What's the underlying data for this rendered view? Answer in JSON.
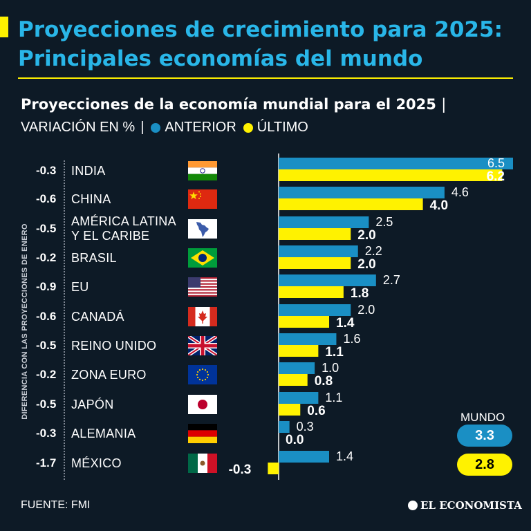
{
  "header": {
    "title": "Proyecciones de crecimiento para 2025: Principales economías del mundo",
    "subtitle": "Proyecciones de la economía mundial para el 2025",
    "subtitle_sep": "|",
    "unit_label": "VARIACIÓN EN %",
    "legend_sep": "|",
    "legend_prev": "ANTERIOR",
    "legend_last": "ÚLTIMO"
  },
  "side_label": "DIFERENCIA CON LAS PROYECCIONES DE ENERO",
  "colors": {
    "background": "#0d1a26",
    "title": "#29b6e8",
    "prev": "#1a8fc4",
    "last": "#fff200"
  },
  "rows": [
    {
      "diff": "-0.3",
      "country": "INDIA",
      "flag": "india-flag-icon"
    },
    {
      "diff": "-0.6",
      "country": "CHINA",
      "flag": "china-flag-icon"
    },
    {
      "diff": "-0.5",
      "country": "AMÉRICA LATINA Y EL CARIBE",
      "flag": "latin-america-map-icon"
    },
    {
      "diff": "-0.2",
      "country": "BRASIL",
      "flag": "brazil-flag-icon"
    },
    {
      "diff": "-0.9",
      "country": "EU",
      "flag": "usa-flag-icon"
    },
    {
      "diff": "-0.6",
      "country": "CANADÁ",
      "flag": "canada-flag-icon"
    },
    {
      "diff": "-0.5",
      "country": "REINO UNIDO",
      "flag": "uk-flag-icon"
    },
    {
      "diff": "-0.2",
      "country": "ZONA EURO",
      "flag": "eu-flag-icon"
    },
    {
      "diff": "-0.5",
      "country": "JAPÓN",
      "flag": "japan-flag-icon"
    },
    {
      "diff": "-0.3",
      "country": "ALEMANIA",
      "flag": "germany-flag-icon"
    },
    {
      "diff": "-1.7",
      "country": "MÉXICO",
      "flag": "mexico-flag-icon"
    }
  ],
  "world": {
    "label": "MUNDO",
    "prev": "3.3",
    "last": "2.8"
  },
  "footer": {
    "source": "FUENTE: FMI",
    "brand": "EL ECONOMISTA"
  },
  "chart_data": {
    "type": "bar",
    "orientation": "horizontal",
    "categories": [
      "INDIA",
      "CHINA",
      "AMÉRICA LATINA Y EL CARIBE",
      "BRASIL",
      "EU",
      "CANADÁ",
      "REINO UNIDO",
      "ZONA EURO",
      "JAPÓN",
      "ALEMANIA",
      "MÉXICO"
    ],
    "series": [
      {
        "name": "ANTERIOR",
        "values": [
          6.5,
          4.6,
          2.5,
          2.2,
          2.7,
          2.0,
          1.6,
          1.0,
          1.1,
          0.3,
          1.4
        ],
        "labels": [
          "6.5",
          "4.6",
          "2.5",
          "2.2",
          "2.7",
          "2.0",
          "1.6",
          "1.0",
          "1.1",
          "0.3",
          "1.4"
        ]
      },
      {
        "name": "ÚLTIMO",
        "values": [
          6.2,
          4.0,
          2.0,
          2.0,
          1.8,
          1.4,
          1.1,
          0.8,
          0.6,
          0.0,
          -0.3
        ],
        "labels": [
          "6.2",
          "4.0",
          "2.0",
          "2.0",
          "1.8",
          "1.4",
          "1.1",
          "0.8",
          "0.6",
          "0.0",
          "-0.3"
        ]
      }
    ],
    "xlim": [
      -0.3,
      6.5
    ],
    "title": "Proyecciones de la economía mundial para el 2025",
    "xlabel": "",
    "ylabel": "",
    "legend": "top-left"
  }
}
